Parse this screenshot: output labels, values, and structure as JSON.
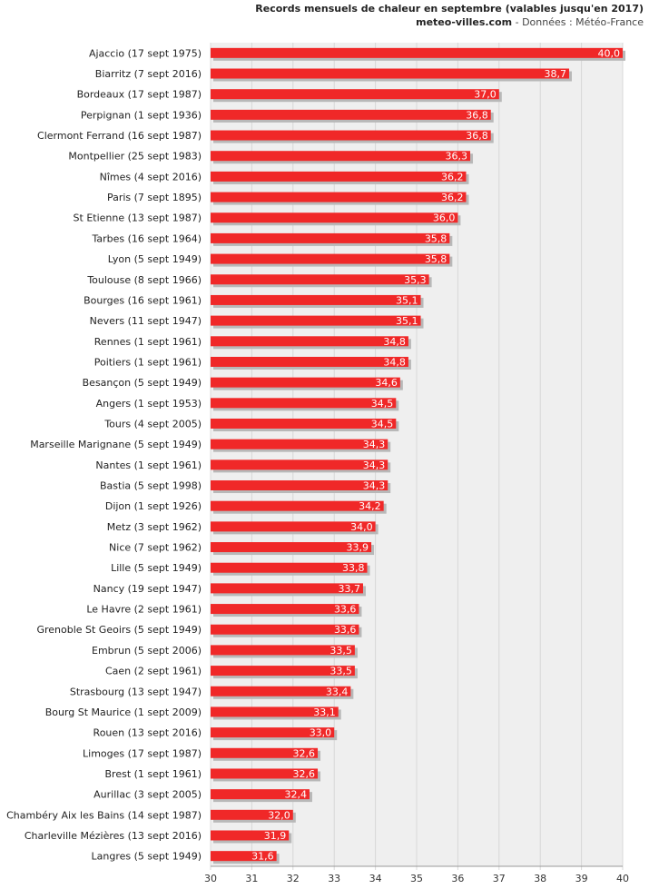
{
  "header": {
    "title": "Records mensuels de chaleur en septembre (valables jusqu'en 2017)",
    "site": "meteo-villes.com",
    "source": " - Données : Météo-France"
  },
  "colors": {
    "bar": "#f02828",
    "bar_shadow": "#b8b8b8",
    "grid": "#d8d8d8",
    "plot_bg": "#efefef"
  },
  "chart_data": {
    "type": "bar",
    "orientation": "horizontal",
    "title": "Records mensuels de chaleur en septembre (valables jusqu'en 2017)",
    "xlim": [
      30,
      40
    ],
    "xticks": [
      30,
      31,
      32,
      33,
      34,
      35,
      36,
      37,
      38,
      39,
      40
    ],
    "grid": true,
    "categories": [
      "Ajaccio (17 sept 1975)",
      "Biarritz (7 sept 2016)",
      "Bordeaux (17 sept 1987)",
      "Perpignan (1 sept 1936)",
      "Clermont Ferrand (16 sept 1987)",
      "Montpellier (25 sept 1983)",
      "Nîmes (4 sept 2016)",
      "Paris (7 sept 1895)",
      "St Etienne (13 sept 1987)",
      "Tarbes (16 sept 1964)",
      "Lyon (5 sept 1949)",
      "Toulouse (8 sept 1966)",
      "Bourges (16 sept 1961)",
      "Nevers (11 sept 1947)",
      "Rennes (1 sept 1961)",
      "Poitiers (1 sept 1961)",
      "Besançon (5 sept 1949)",
      "Angers (1 sept 1953)",
      "Tours (4 sept 2005)",
      "Marseille Marignane (5 sept 1949)",
      "Nantes (1 sept 1961)",
      "Bastia (5 sept 1998)",
      "Dijon (1 sept 1926)",
      "Metz (3 sept 1962)",
      "Nice (7 sept 1962)",
      "Lille (5 sept 1949)",
      "Nancy (19 sept 1947)",
      "Le Havre (2 sept 1961)",
      "Grenoble St Geoirs (5 sept 1949)",
      "Embrun (5 sept 2006)",
      "Caen (2 sept 1961)",
      "Strasbourg (13 sept 1947)",
      "Bourg St Maurice (1 sept 2009)",
      "Rouen (13 sept 2016)",
      "Limoges (17 sept 1987)",
      "Brest (1 sept 1961)",
      "Aurillac (3 sept 2005)",
      "Chambéry Aix les Bains (14 sept 1987)",
      "Charleville Mézières (13 sept 2016)",
      "Langres (5 sept 1949)"
    ],
    "values": [
      40.0,
      38.7,
      37.0,
      36.8,
      36.8,
      36.3,
      36.2,
      36.2,
      36.0,
      35.8,
      35.8,
      35.3,
      35.1,
      35.1,
      34.8,
      34.8,
      34.6,
      34.5,
      34.5,
      34.3,
      34.3,
      34.3,
      34.2,
      34.0,
      33.9,
      33.8,
      33.7,
      33.6,
      33.6,
      33.5,
      33.5,
      33.4,
      33.1,
      33.0,
      32.6,
      32.6,
      32.4,
      32.0,
      31.9,
      31.6
    ],
    "value_labels": [
      "40,0",
      "38,7",
      "37,0",
      "36,8",
      "36,8",
      "36,3",
      "36,2",
      "36,2",
      "36,0",
      "35,8",
      "35,8",
      "35,3",
      "35,1",
      "35,1",
      "34,8",
      "34,8",
      "34,6",
      "34,5",
      "34,5",
      "34,3",
      "34,3",
      "34,3",
      "34,2",
      "34,0",
      "33,9",
      "33,8",
      "33,7",
      "33,6",
      "33,6",
      "33,5",
      "33,5",
      "33,4",
      "33,1",
      "33,0",
      "32,6",
      "32,6",
      "32,4",
      "32,0",
      "31,9",
      "31,6"
    ]
  }
}
